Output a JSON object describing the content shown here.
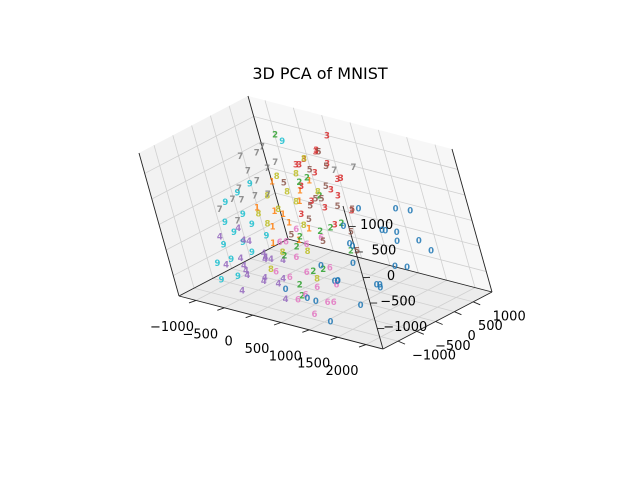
{
  "chart_data": {
    "type": "scatter",
    "title": "3D PCA of MNIST",
    "projection": "3d",
    "xlabel": "",
    "ylabel": "",
    "zlabel": "",
    "x_ticks": [
      "−1000",
      "−500",
      "0",
      "500",
      "1000",
      "1500",
      "2000"
    ],
    "y_ticks": [
      "−1000",
      "−500",
      "0",
      "500",
      "1000"
    ],
    "z_ticks": [
      "−1000",
      "−500",
      "0",
      "500",
      "1000"
    ],
    "xlim": [
      -1300,
      2300
    ],
    "ylim": [
      -1400,
      1500
    ],
    "zlim": [
      -1400,
      1400
    ],
    "grid": true,
    "legend": "none",
    "marker": "digit-label",
    "classes": [
      {
        "label": "0",
        "color": "#1f77b4"
      },
      {
        "label": "1",
        "color": "#ff7f0e"
      },
      {
        "label": "2",
        "color": "#2ca02c"
      },
      {
        "label": "3",
        "color": "#d62728"
      },
      {
        "label": "4",
        "color": "#9467bd"
      },
      {
        "label": "5",
        "color": "#8c564b"
      },
      {
        "label": "6",
        "color": "#e377c2"
      },
      {
        "label": "7",
        "color": "#7f7f7f"
      },
      {
        "label": "8",
        "color": "#bcbd22"
      },
      {
        "label": "9",
        "color": "#17becf"
      }
    ],
    "points": [
      {
        "label": "0",
        "x": 1500,
        "y": 600,
        "z": -300
      },
      {
        "label": "0",
        "x": 1800,
        "y": 300,
        "z": -600
      },
      {
        "label": "0",
        "x": 1200,
        "y": -200,
        "z": -500
      },
      {
        "label": "0",
        "x": 1900,
        "y": -100,
        "z": -400
      },
      {
        "label": "0",
        "x": 1400,
        "y": 900,
        "z": 200
      },
      {
        "label": "0",
        "x": 1000,
        "y": -500,
        "z": -800
      },
      {
        "label": "0",
        "x": 1600,
        "y": 200,
        "z": 100
      },
      {
        "label": "0",
        "x": 2000,
        "y": 500,
        "z": -100
      },
      {
        "label": "0",
        "x": 1300,
        "y": -800,
        "z": -600
      },
      {
        "label": "0",
        "x": 900,
        "y": -300,
        "z": -900
      },
      {
        "label": "0",
        "x": 1700,
        "y": -400,
        "z": -700
      },
      {
        "label": "0",
        "x": 1100,
        "y": 400,
        "z": 300
      },
      {
        "label": "0",
        "x": 1250,
        "y": 700,
        "z": -200
      },
      {
        "label": "0",
        "x": 800,
        "y": -1000,
        "z": -1000
      },
      {
        "label": "0",
        "x": 1450,
        "y": -600,
        "z": -1100
      },
      {
        "label": "0",
        "x": 1750,
        "y": 800,
        "z": 300
      },
      {
        "label": "0",
        "x": 950,
        "y": 200,
        "z": -400
      },
      {
        "label": "0",
        "x": 1550,
        "y": -150,
        "z": -900
      },
      {
        "label": "0",
        "x": 1150,
        "y": -900,
        "z": -300
      },
      {
        "label": "0",
        "x": 700,
        "y": -700,
        "z": -1200
      },
      {
        "label": "0",
        "x": 1350,
        "y": 100,
        "z": -1000
      },
      {
        "label": "0",
        "x": 1650,
        "y": -700,
        "z": 200
      },
      {
        "label": "0",
        "x": 1050,
        "y": 0,
        "z": 100
      },
      {
        "label": "0",
        "x": 1850,
        "y": 900,
        "z": -500
      },
      {
        "label": "0",
        "x": 600,
        "y": -1200,
        "z": -800
      },
      {
        "label": "0",
        "x": 1200,
        "y": -1100,
        "z": -1300
      },
      {
        "label": "0",
        "x": 1950,
        "y": 100,
        "z": 200
      },
      {
        "label": "1",
        "x": -200,
        "y": 200,
        "z": -100
      },
      {
        "label": "1",
        "x": -100,
        "y": -100,
        "z": 100
      },
      {
        "label": "1",
        "x": 100,
        "y": 300,
        "z": 200
      },
      {
        "label": "1",
        "x": -300,
        "y": 0,
        "z": -300
      },
      {
        "label": "1",
        "x": 0,
        "y": 500,
        "z": 300
      },
      {
        "label": "1",
        "x": 200,
        "y": -200,
        "z": 0
      },
      {
        "label": "1",
        "x": -400,
        "y": 400,
        "z": 400
      },
      {
        "label": "1",
        "x": 300,
        "y": 100,
        "z": -200
      },
      {
        "label": "1",
        "x": -50,
        "y": -400,
        "z": -400
      },
      {
        "label": "1",
        "x": 150,
        "y": 600,
        "z": 500
      },
      {
        "label": "1",
        "x": -250,
        "y": -300,
        "z": 200
      },
      {
        "label": "1",
        "x": 50,
        "y": 100,
        "z": -500
      },
      {
        "label": "2",
        "x": -500,
        "y": 900,
        "z": 1100
      },
      {
        "label": "2",
        "x": 300,
        "y": -300,
        "z": -400
      },
      {
        "label": "2",
        "x": 500,
        "y": 100,
        "z": -200
      },
      {
        "label": "2",
        "x": 600,
        "y": -200,
        "z": -800
      },
      {
        "label": "2",
        "x": 200,
        "y": 300,
        "z": 600
      },
      {
        "label": "2",
        "x": 700,
        "y": 400,
        "z": -100
      },
      {
        "label": "2",
        "x": 400,
        "y": -600,
        "z": -1000
      },
      {
        "label": "2",
        "x": 100,
        "y": -400,
        "z": -600
      },
      {
        "label": "2",
        "x": 800,
        "y": 0,
        "z": 0
      },
      {
        "label": "2",
        "x": 900,
        "y": 200,
        "z": -500
      },
      {
        "label": "2",
        "x": 350,
        "y": 500,
        "z": 300
      },
      {
        "label": "2",
        "x": 650,
        "y": -500,
        "z": -700
      },
      {
        "label": "2",
        "x": 450,
        "y": 200,
        "z": 800
      },
      {
        "label": "2",
        "x": 250,
        "y": -100,
        "z": -300
      },
      {
        "label": "2",
        "x": 550,
        "y": -800,
        "z": -1100
      },
      {
        "label": "3",
        "x": 400,
        "y": 1000,
        "z": 1300
      },
      {
        "label": "3",
        "x": 200,
        "y": 900,
        "z": 1000
      },
      {
        "label": "3",
        "x": 0,
        "y": 800,
        "z": 800
      },
      {
        "label": "3",
        "x": 500,
        "y": 700,
        "z": 900
      },
      {
        "label": "3",
        "x": -100,
        "y": 700,
        "z": 700
      },
      {
        "label": "3",
        "x": 300,
        "y": 600,
        "z": 700
      },
      {
        "label": "3",
        "x": 600,
        "y": 800,
        "z": 600
      },
      {
        "label": "3",
        "x": 100,
        "y": 1000,
        "z": 900
      },
      {
        "label": "3",
        "x": 700,
        "y": 500,
        "z": 400
      },
      {
        "label": "3",
        "x": -200,
        "y": 900,
        "z": 600
      },
      {
        "label": "3",
        "x": 450,
        "y": 900,
        "z": 500
      },
      {
        "label": "3",
        "x": 250,
        "y": 400,
        "z": 200
      },
      {
        "label": "3",
        "x": 800,
        "y": 600,
        "z": 100
      },
      {
        "label": "3",
        "x": 50,
        "y": 500,
        "z": 400
      },
      {
        "label": "3",
        "x": 650,
        "y": 300,
        "z": -100
      },
      {
        "label": "3",
        "x": 350,
        "y": 800,
        "z": 300
      },
      {
        "label": "3",
        "x": 550,
        "y": 300,
        "z": 200
      },
      {
        "label": "3",
        "x": 150,
        "y": 200,
        "z": 0
      },
      {
        "label": "4",
        "x": -300,
        "y": -900,
        "z": -900
      },
      {
        "label": "4",
        "x": -100,
        "y": -800,
        "z": -1000
      },
      {
        "label": "4",
        "x": 100,
        "y": -1000,
        "z": -800
      },
      {
        "label": "4",
        "x": -500,
        "y": -700,
        "z": -700
      },
      {
        "label": "4",
        "x": 0,
        "y": -600,
        "z": -1100
      },
      {
        "label": "4",
        "x": -400,
        "y": -1000,
        "z": -1200
      },
      {
        "label": "4",
        "x": 200,
        "y": -700,
        "z": -900
      },
      {
        "label": "4",
        "x": -200,
        "y": -500,
        "z": -600
      },
      {
        "label": "4",
        "x": -600,
        "y": -400,
        "z": -500
      },
      {
        "label": "4",
        "x": 300,
        "y": -900,
        "z": -1200
      },
      {
        "label": "4",
        "x": -700,
        "y": -800,
        "z": -300
      },
      {
        "label": "4",
        "x": -350,
        "y": -300,
        "z": -800
      },
      {
        "label": "4",
        "x": -150,
        "y": -1100,
        "z": -600
      },
      {
        "label": "4",
        "x": 50,
        "y": -400,
        "z": -700
      },
      {
        "label": "4",
        "x": -550,
        "y": -600,
        "z": -1000
      },
      {
        "label": "4",
        "x": -800,
        "y": -200,
        "z": -400
      },
      {
        "label": "4",
        "x": -250,
        "y": -700,
        "z": -300
      },
      {
        "label": "4",
        "x": 150,
        "y": -800,
        "z": -500
      },
      {
        "label": "4",
        "x": -450,
        "y": -200,
        "z": -900
      },
      {
        "label": "4",
        "x": -650,
        "y": -900,
        "z": -800
      },
      {
        "label": "5",
        "x": 300,
        "y": 500,
        "z": 800
      },
      {
        "label": "5",
        "x": 600,
        "y": 400,
        "z": 600
      },
      {
        "label": "5",
        "x": 800,
        "y": 300,
        "z": 300
      },
      {
        "label": "5",
        "x": 500,
        "y": 200,
        "z": 400
      },
      {
        "label": "5",
        "x": 400,
        "y": 700,
        "z": 1100
      },
      {
        "label": "5",
        "x": 900,
        "y": 500,
        "z": 200
      },
      {
        "label": "5",
        "x": 700,
        "y": 100,
        "z": 500
      },
      {
        "label": "5",
        "x": 200,
        "y": 400,
        "z": 100
      },
      {
        "label": "5",
        "x": 1000,
        "y": 200,
        "z": -100
      },
      {
        "label": "5",
        "x": -100,
        "y": 300,
        "z": 500
      },
      {
        "label": "5",
        "x": 100,
        "y": -100,
        "z": -300
      },
      {
        "label": "5",
        "x": 1100,
        "y": 100,
        "z": -400
      },
      {
        "label": "5",
        "x": 550,
        "y": 600,
        "z": 900
      },
      {
        "label": "5",
        "x": 750,
        "y": -200,
        "z": -200
      },
      {
        "label": "5",
        "x": 350,
        "y": 100,
        "z": 0
      },
      {
        "label": "6",
        "x": 200,
        "y": -400,
        "z": -300
      },
      {
        "label": "6",
        "x": 400,
        "y": -500,
        "z": -500
      },
      {
        "label": "6",
        "x": 600,
        "y": -600,
        "z": -700
      },
      {
        "label": "6",
        "x": 800,
        "y": -700,
        "z": -900
      },
      {
        "label": "6",
        "x": 1000,
        "y": -800,
        "z": -1100
      },
      {
        "label": "6",
        "x": 300,
        "y": -200,
        "z": -100
      },
      {
        "label": "6",
        "x": 500,
        "y": -300,
        "z": -300
      },
      {
        "label": "6",
        "x": 700,
        "y": -900,
        "z": -1000
      },
      {
        "label": "6",
        "x": 100,
        "y": -700,
        "z": -800
      },
      {
        "label": "6",
        "x": 900,
        "y": -400,
        "z": -600
      },
      {
        "label": "6",
        "x": 1100,
        "y": -600,
        "z": -800
      },
      {
        "label": "6",
        "x": 0,
        "y": -300,
        "z": -400
      },
      {
        "label": "6",
        "x": 450,
        "y": -800,
        "z": -1200
      },
      {
        "label": "6",
        "x": 650,
        "y": -100,
        "z": -200
      },
      {
        "label": "6",
        "x": 850,
        "y": -1000,
        "z": -1300
      },
      {
        "label": "6",
        "x": 250,
        "y": -600,
        "z": -900
      },
      {
        "label": "6",
        "x": 1200,
        "y": -900,
        "z": -1000
      },
      {
        "label": "7",
        "x": -800,
        "y": 400,
        "z": 500
      },
      {
        "label": "7",
        "x": -900,
        "y": 200,
        "z": 200
      },
      {
        "label": "7",
        "x": -700,
        "y": 600,
        "z": 800
      },
      {
        "label": "7",
        "x": -1000,
        "y": 100,
        "z": 0
      },
      {
        "label": "7",
        "x": -600,
        "y": 300,
        "z": 400
      },
      {
        "label": "7",
        "x": -850,
        "y": -100,
        "z": -300
      },
      {
        "label": "7",
        "x": -500,
        "y": 500,
        "z": 600
      },
      {
        "label": "7",
        "x": -950,
        "y": 500,
        "z": 700
      },
      {
        "label": "7",
        "x": -750,
        "y": 0,
        "z": 100
      },
      {
        "label": "7",
        "x": -650,
        "y": 700,
        "z": 900
      },
      {
        "label": "7",
        "x": -1050,
        "y": -200,
        "z": -100
      },
      {
        "label": "7",
        "x": -550,
        "y": 100,
        "z": 200
      },
      {
        "label": "7",
        "x": -400,
        "y": 600,
        "z": 700
      },
      {
        "label": "7",
        "x": 900,
        "y": 800,
        "z": 900
      },
      {
        "label": "7",
        "x": 600,
        "y": 700,
        "z": 800
      },
      {
        "label": "7",
        "x": -300,
        "y": 100,
        "z": 300
      },
      {
        "label": "8",
        "x": -200,
        "y": 300,
        "z": 600
      },
      {
        "label": "8",
        "x": 0,
        "y": 200,
        "z": 400
      },
      {
        "label": "8",
        "x": 200,
        "y": 100,
        "z": 300
      },
      {
        "label": "8",
        "x": -400,
        "y": 200,
        "z": 200
      },
      {
        "label": "8",
        "x": 100,
        "y": 400,
        "z": 700
      },
      {
        "label": "8",
        "x": -100,
        "y": 0,
        "z": 100
      },
      {
        "label": "8",
        "x": 300,
        "y": 0,
        "z": -100
      },
      {
        "label": "8",
        "x": -300,
        "y": -100,
        "z": -200
      },
      {
        "label": "8",
        "x": 400,
        "y": -200,
        "z": -500
      },
      {
        "label": "8",
        "x": 0,
        "y": -300,
        "z": -600
      },
      {
        "label": "8",
        "x": 500,
        "y": 300,
        "z": 500
      },
      {
        "label": "8",
        "x": -500,
        "y": 0,
        "z": -100
      },
      {
        "label": "8",
        "x": 250,
        "y": 500,
        "z": 1000
      },
      {
        "label": "8",
        "x": 600,
        "y": -400,
        "z": -900
      },
      {
        "label": "8",
        "x": -150,
        "y": -500,
        "z": -900
      },
      {
        "label": "9",
        "x": -900,
        "y": -200,
        "z": -500
      },
      {
        "label": "9",
        "x": -1000,
        "y": -400,
        "z": -700
      },
      {
        "label": "9",
        "x": -800,
        "y": 0,
        "z": -200
      },
      {
        "label": "9",
        "x": -1100,
        "y": -100,
        "z": -400
      },
      {
        "label": "9",
        "x": -700,
        "y": -300,
        "z": -600
      },
      {
        "label": "9",
        "x": -950,
        "y": 200,
        "z": 100
      },
      {
        "label": "9",
        "x": -850,
        "y": -500,
        "z": -900
      },
      {
        "label": "9",
        "x": -600,
        "y": -100,
        "z": -300
      },
      {
        "label": "9",
        "x": -1050,
        "y": -600,
        "z": -1000
      },
      {
        "label": "9",
        "x": -750,
        "y": 300,
        "z": 300
      },
      {
        "label": "9",
        "x": -500,
        "y": -400,
        "z": -700
      },
      {
        "label": "9",
        "x": -1150,
        "y": 100,
        "z": -100
      },
      {
        "label": "9",
        "x": -650,
        "y": -700,
        "z": -1100
      },
      {
        "label": "9",
        "x": -400,
        "y": 900,
        "z": 1000
      },
      {
        "label": "9",
        "x": -900,
        "y": -800,
        "z": -1200
      },
      {
        "label": "9",
        "x": -300,
        "y": -200,
        "z": -400
      }
    ]
  }
}
